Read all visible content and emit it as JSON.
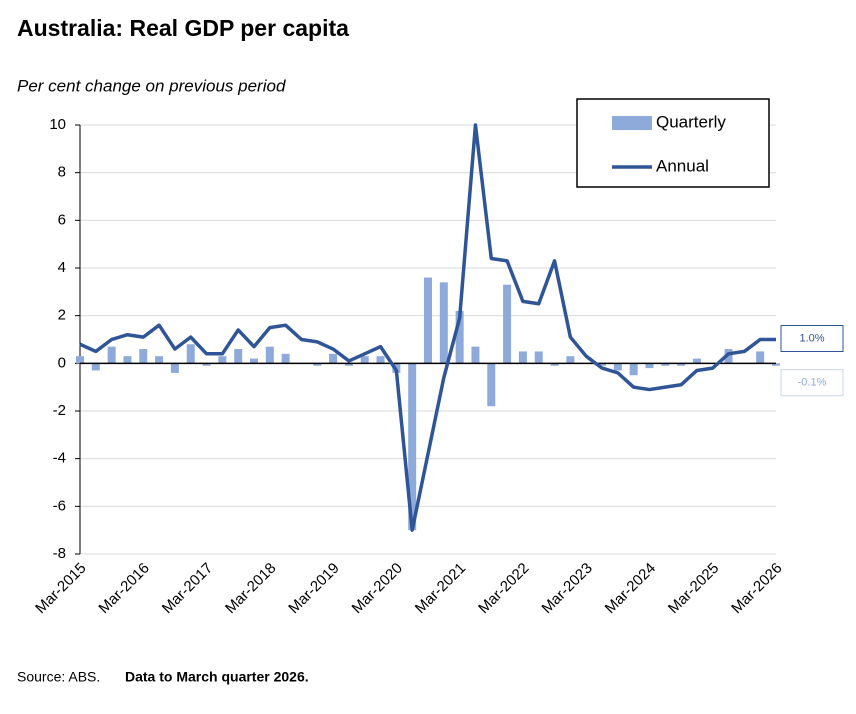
{
  "chart_data": {
    "type": "bar-line",
    "title": "Australia: Real GDP per capita",
    "subtitle": "Per cent change on previous period",
    "source": "Source: ABS.",
    "note": "Data to March quarter 2026.",
    "categories": [
      "Mar-2015",
      null,
      null,
      null,
      "Mar-2016",
      null,
      null,
      null,
      "Mar-2017",
      null,
      null,
      null,
      "Mar-2018",
      null,
      null,
      null,
      "Mar-2019",
      null,
      null,
      null,
      "Mar-2020",
      null,
      null,
      null,
      "Mar-2021",
      null,
      null,
      null,
      "Mar-2022",
      null,
      null,
      null,
      "Mar-2023",
      null,
      null,
      null,
      "Mar-2024",
      null,
      null,
      null,
      "Mar-2025",
      null,
      null,
      null,
      "Mar-2026"
    ],
    "series": [
      {
        "name": "Quarterly",
        "type": "bar",
        "color": "#8eaadb",
        "end_label": "-0.1%",
        "values": [
          0.3,
          -0.3,
          0.7,
          0.3,
          0.6,
          0.3,
          -0.4,
          0.8,
          -0.1,
          0.3,
          0.6,
          0.2,
          0.7,
          0.4,
          0.0,
          -0.1,
          0.4,
          -0.1,
          0.3,
          0.3,
          -0.4,
          -7.0,
          3.6,
          3.4,
          2.2,
          0.7,
          -1.8,
          3.3,
          0.5,
          0.5,
          -0.1,
          0.3,
          0.0,
          -0.1,
          -0.3,
          -0.5,
          -0.2,
          -0.1,
          -0.1,
          0.2,
          0.0,
          0.6,
          0.0,
          0.5,
          -0.1
        ]
      },
      {
        "name": "Annual",
        "type": "line",
        "color": "#2f5597",
        "end_label": "1.0%",
        "values": [
          0.8,
          0.5,
          1.0,
          1.2,
          1.1,
          1.6,
          0.6,
          1.1,
          0.4,
          0.4,
          1.4,
          0.7,
          1.5,
          1.6,
          1.0,
          0.9,
          0.6,
          0.1,
          0.4,
          0.7,
          -0.3,
          -7.0,
          -3.8,
          -0.6,
          1.9,
          10.0,
          4.4,
          4.3,
          2.6,
          2.5,
          4.3,
          1.1,
          0.3,
          -0.2,
          -0.4,
          -1.0,
          -1.1,
          -1.0,
          -0.9,
          -0.3,
          -0.2,
          0.4,
          0.5,
          1.0,
          1.0
        ]
      }
    ],
    "ylim": [
      -8,
      10
    ],
    "yticks": [
      -8,
      -6,
      -4,
      -2,
      0,
      2,
      4,
      6,
      8,
      10
    ],
    "grid": true,
    "legend": "top-right"
  }
}
